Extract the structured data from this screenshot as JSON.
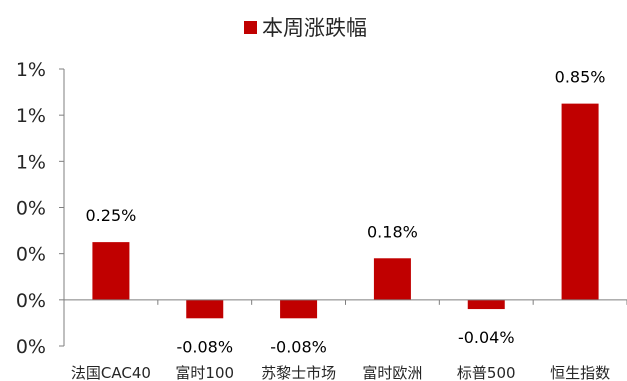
{
  "chart_data": {
    "type": "bar",
    "legend": {
      "label": "本周涨跌幅",
      "position": "top"
    },
    "categories": [
      "法国CAC40",
      "富时100",
      "苏黎士市场",
      "富时欧洲",
      "标普500",
      "恒生指数"
    ],
    "series": [
      {
        "name": "本周涨跌幅",
        "values": [
          0.25,
          -0.08,
          -0.08,
          0.18,
          -0.04,
          0.85
        ],
        "data_labels": [
          "0.25%",
          "-0.08%",
          "-0.08%",
          "0.18%",
          "-0.04%",
          "0.85%"
        ],
        "color": "#C00000"
      }
    ],
    "y_ticks": [
      {
        "value": -0.2,
        "label": "0%"
      },
      {
        "value": 0.0,
        "label": "0%"
      },
      {
        "value": 0.2,
        "label": "0%"
      },
      {
        "value": 0.4,
        "label": "0%"
      },
      {
        "value": 0.6,
        "label": "1%"
      },
      {
        "value": 0.8,
        "label": "1%"
      },
      {
        "value": 1.0,
        "label": "1%"
      }
    ],
    "ylim": [
      -0.2,
      1.0
    ],
    "grid": false
  }
}
